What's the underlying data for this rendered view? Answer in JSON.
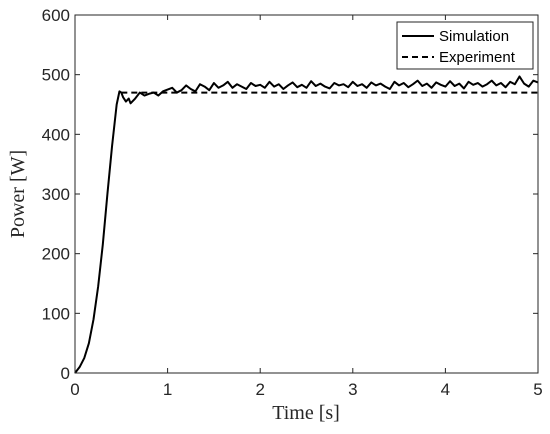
{
  "chart_data": {
    "type": "line",
    "title": "",
    "xlabel": "Time [s]",
    "ylabel": "Power [W]",
    "xlim": [
      0,
      5
    ],
    "ylim": [
      0,
      600
    ],
    "xticks": [
      0,
      1,
      2,
      3,
      4,
      5
    ],
    "yticks": [
      0,
      100,
      200,
      300,
      400,
      500,
      600
    ],
    "grid": false,
    "legend_position": "top-right",
    "series": [
      {
        "name": "Simulation",
        "style": "solid",
        "color": "#000000",
        "x": [
          0,
          0.05,
          0.1,
          0.15,
          0.2,
          0.25,
          0.3,
          0.35,
          0.4,
          0.45,
          0.48,
          0.5,
          0.52,
          0.55,
          0.58,
          0.6,
          0.65,
          0.7,
          0.75,
          0.8,
          0.85,
          0.9,
          0.95,
          1.0,
          1.05,
          1.1,
          1.15,
          1.2,
          1.25,
          1.3,
          1.35,
          1.4,
          1.45,
          1.5,
          1.55,
          1.6,
          1.65,
          1.7,
          1.75,
          1.8,
          1.85,
          1.9,
          1.95,
          2.0,
          2.05,
          2.1,
          2.15,
          2.2,
          2.25,
          2.3,
          2.35,
          2.4,
          2.45,
          2.5,
          2.55,
          2.6,
          2.65,
          2.7,
          2.75,
          2.8,
          2.85,
          2.9,
          2.95,
          3.0,
          3.05,
          3.1,
          3.15,
          3.2,
          3.25,
          3.3,
          3.35,
          3.4,
          3.45,
          3.5,
          3.55,
          3.6,
          3.65,
          3.7,
          3.75,
          3.8,
          3.85,
          3.9,
          3.95,
          4.0,
          4.05,
          4.1,
          4.15,
          4.2,
          4.25,
          4.3,
          4.35,
          4.4,
          4.45,
          4.5,
          4.55,
          4.6,
          4.65,
          4.7,
          4.75,
          4.8,
          4.85,
          4.9,
          4.95,
          5.0
        ],
        "y": [
          0,
          10,
          25,
          50,
          90,
          145,
          215,
          300,
          380,
          450,
          472,
          470,
          462,
          455,
          460,
          452,
          460,
          470,
          465,
          468,
          470,
          465,
          472,
          475,
          478,
          470,
          474,
          482,
          476,
          472,
          484,
          480,
          474,
          486,
          478,
          482,
          488,
          478,
          484,
          480,
          476,
          486,
          481,
          483,
          478,
          488,
          480,
          484,
          476,
          482,
          487,
          479,
          483,
          478,
          489,
          481,
          485,
          480,
          477,
          486,
          482,
          484,
          479,
          488,
          481,
          484,
          478,
          487,
          482,
          485,
          480,
          476,
          488,
          482,
          486,
          479,
          484,
          490,
          481,
          485,
          478,
          487,
          483,
          480,
          489,
          481,
          485,
          477,
          488,
          483,
          486,
          480,
          484,
          490,
          482,
          486,
          479,
          488,
          484,
          497,
          485,
          480,
          490,
          487
        ]
      },
      {
        "name": "Experiment",
        "style": "dashed",
        "color": "#000000",
        "x": [
          0.5,
          5.0
        ],
        "y": [
          470,
          470
        ]
      }
    ]
  }
}
